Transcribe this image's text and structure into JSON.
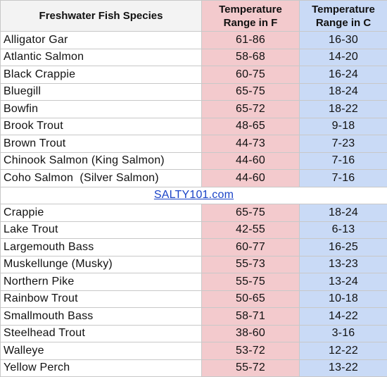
{
  "header": {
    "species": "Freshwater Fish Species",
    "temp_f": "Temperature Range in F",
    "temp_c": "Temperature Range in C"
  },
  "group1": [
    {
      "name": "Alligator Gar",
      "f": "61-86",
      "c": "16-30"
    },
    {
      "name": "Atlantic Salmon",
      "f": "58-68",
      "c": "14-20"
    },
    {
      "name": "Black Crappie",
      "f": "60-75",
      "c": "16-24"
    },
    {
      "name": "Bluegill",
      "f": "65-75",
      "c": "18-24"
    },
    {
      "name": "Bowfin",
      "f": "65-72",
      "c": "18-22"
    },
    {
      "name": "Brook Trout",
      "f": "48-65",
      "c": "9-18"
    },
    {
      "name": "Brown Trout",
      "f": "44-73",
      "c": "7-23"
    },
    {
      "name": "Chinook Salmon (King Salmon)",
      "f": "44-60",
      "c": "7-16"
    },
    {
      "name": "Coho Salmon  (Silver Salmon)",
      "f": "44-60",
      "c": "7-16"
    }
  ],
  "watermark": "SALTY101.com",
  "group2": [
    {
      "name": "Crappie",
      "f": "65-75",
      "c": "18-24"
    },
    {
      "name": "Lake Trout",
      "f": "42-55",
      "c": "6-13"
    },
    {
      "name": "Largemouth Bass",
      "f": "60-77",
      "c": "16-25"
    },
    {
      "name": "Muskellunge (Musky)",
      "f": "55-73",
      "c": "13-23"
    },
    {
      "name": "Northern Pike",
      "f": "55-75",
      "c": "13-24"
    },
    {
      "name": "Rainbow Trout",
      "f": "50-65",
      "c": "10-18"
    },
    {
      "name": "Smallmouth Bass",
      "f": "58-71",
      "c": "14-22"
    },
    {
      "name": "Steelhead Trout",
      "f": "38-60",
      "c": "3-16"
    },
    {
      "name": "Walleye",
      "f": "53-72",
      "c": "12-22"
    },
    {
      "name": "Yellow Perch",
      "f": "55-72",
      "c": "13-22"
    }
  ]
}
